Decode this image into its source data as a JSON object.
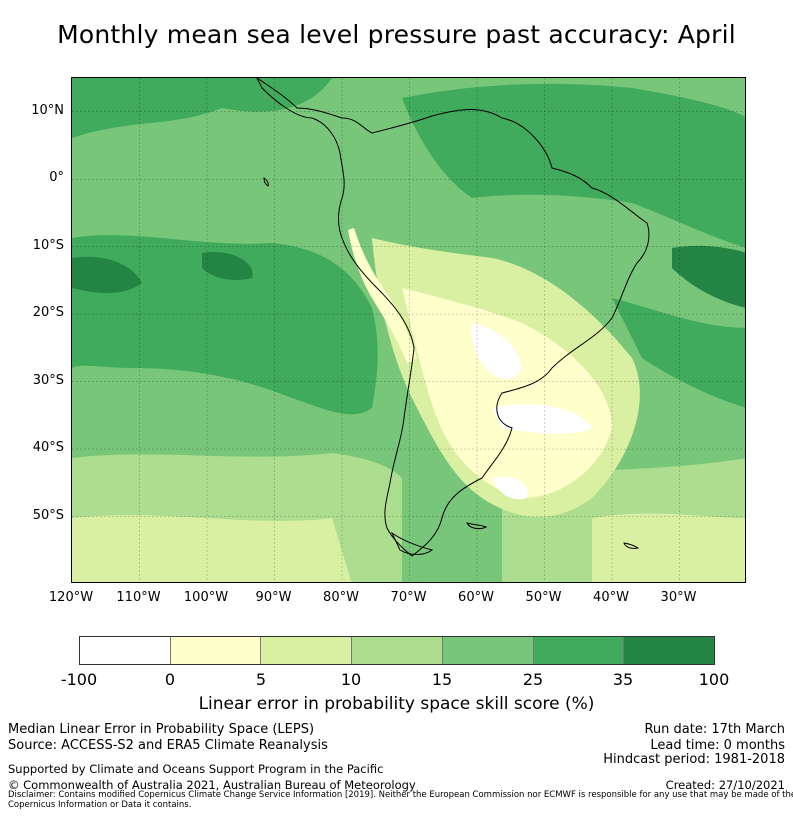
{
  "title": "Monthly mean sea level pressure past accuracy: April",
  "map": {
    "lat_labels": [
      "10°N",
      "0°",
      "10°S",
      "20°S",
      "30°S",
      "40°S",
      "50°S"
    ],
    "lon_labels": [
      "120°W",
      "110°W",
      "100°W",
      "90°W",
      "80°W",
      "70°W",
      "60°W",
      "50°W",
      "40°W",
      "30°W"
    ],
    "lat_values": [
      10,
      0,
      -10,
      -20,
      -30,
      -40,
      -50
    ],
    "lon_values": [
      -120,
      -110,
      -100,
      -90,
      -80,
      -70,
      -60,
      -50,
      -40,
      -30
    ],
    "extent": {
      "lon_min": -120,
      "lon_max": -20,
      "lat_min": -60,
      "lat_max": 15
    }
  },
  "colorbar": {
    "ticks": [
      "-100",
      "0",
      "5",
      "10",
      "15",
      "25",
      "35",
      "100"
    ],
    "colors": [
      "#ffffff",
      "#ffffcc",
      "#d9f0a3",
      "#addd8e",
      "#78c679",
      "#41ab5d",
      "#238443"
    ],
    "label": "Linear error in probability space skill score (%)"
  },
  "footer": {
    "left1": "Median Linear Error in Probability Space (LEPS)",
    "left2": "Source: ACCESS-S2 and ERA5 Climate Reanalysis",
    "left3": "Supported by Climate and Oceans Support Program in the Pacific",
    "left4": "© Commonwealth of Australia 2021, Australian Bureau of Meteorology",
    "run_date": "Run date: 17th March",
    "lead_time": "Lead time: 0 months",
    "hindcast": "Hindcast period: 1981-2018",
    "created": "Created: 27/10/2021",
    "disclaimer": "Disclaimer: Contains modified Copernicus Climate Change Service Information [2019]. Neither the European Commission nor ECMWF is responsible for any use that may be made of the Copernicus Information or Data it contains."
  }
}
